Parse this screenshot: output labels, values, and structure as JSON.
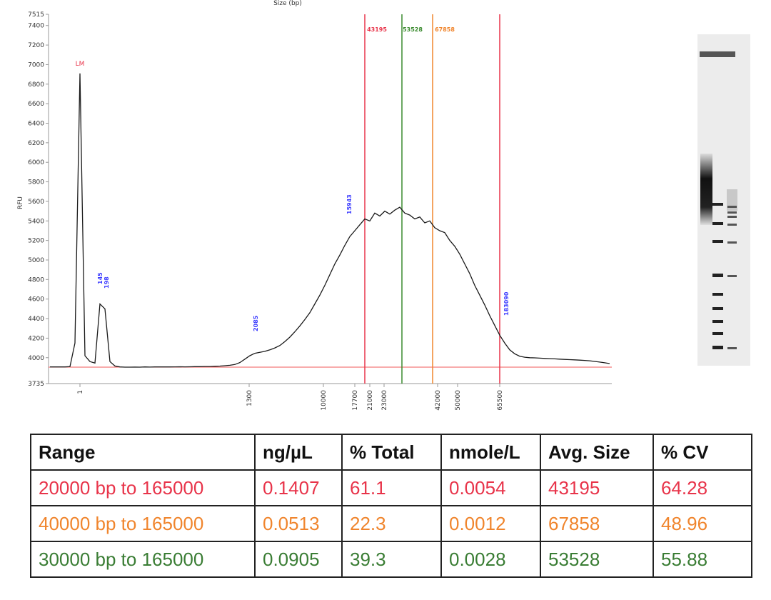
{
  "chart_data": {
    "type": "line",
    "x_label": "Size (bp)",
    "y_label": "RFU",
    "ylim": [
      3735,
      7515
    ],
    "yticks": [
      3735,
      4000,
      4200,
      4400,
      4600,
      4800,
      5000,
      5200,
      5400,
      5600,
      5800,
      6000,
      6200,
      6400,
      6600,
      6800,
      7000,
      7200,
      7400,
      7515
    ],
    "xticks": [
      1,
      1300,
      10000,
      17700,
      21000,
      23000,
      42000,
      50000,
      65500
    ],
    "series": [
      {
        "color": "#1a1a1a",
        "values": [
          3905,
          3905,
          3905,
          3905,
          3908,
          4150,
          6910,
          4020,
          3960,
          3945,
          4550,
          4500,
          3960,
          3915,
          3905,
          3903,
          3903,
          3904,
          3903,
          3905,
          3904,
          3905,
          3905,
          3906,
          3905,
          3906,
          3907,
          3906,
          3907,
          3908,
          3908,
          3910,
          3910,
          3912,
          3914,
          3918,
          3922,
          3930,
          3950,
          3985,
          4020,
          4045,
          4055,
          4065,
          4080,
          4100,
          4125,
          4165,
          4210,
          4265,
          4325,
          4390,
          4460,
          4550,
          4640,
          4740,
          4850,
          4960,
          5050,
          5150,
          5240,
          5300,
          5360,
          5420,
          5400,
          5480,
          5450,
          5500,
          5470,
          5510,
          5540,
          5480,
          5460,
          5420,
          5440,
          5380,
          5400,
          5330,
          5300,
          5280,
          5200,
          5140,
          5060,
          4960,
          4860,
          4740,
          4640,
          4540,
          4430,
          4330,
          4230,
          4150,
          4080,
          4040,
          4015,
          4005,
          4000,
          3998,
          3995,
          3992,
          3990,
          3988,
          3985,
          3982,
          3980,
          3978,
          3975,
          3972,
          3968,
          3962,
          3955,
          3948,
          3940
        ]
      }
    ],
    "annotations": [
      {
        "text": "LM",
        "color": "#e8344a"
      },
      {
        "text": "145",
        "color": "#3b3bff"
      },
      {
        "text": "198",
        "color": "#3b3bff"
      },
      {
        "text": "2085",
        "color": "#3b3bff"
      },
      {
        "text": "15943",
        "color": "#3b3bff"
      },
      {
        "text": "183090",
        "color": "#3b3bff"
      }
    ],
    "markers": [
      {
        "label": "43195",
        "color": "#e8344a"
      },
      {
        "label": "53528",
        "color": "#3a8a2e"
      },
      {
        "label": "67858",
        "color": "#f0852d"
      }
    ]
  },
  "table": {
    "header": [
      "Range",
      "ng/µL",
      "% Total",
      "nmole/L",
      "Avg. Size",
      "% CV"
    ],
    "row_colors": [
      "#e8344a",
      "#f0852d",
      "#3a7d34"
    ],
    "rows": [
      [
        "20000 bp to 165000",
        0.1407,
        61.1,
        0.0054,
        43195,
        64.28
      ],
      [
        "40000 bp to 165000",
        0.0513,
        22.3,
        0.0012,
        67858,
        48.96
      ],
      [
        "30000 bp to 165000",
        0.0905,
        39.3,
        0.0028,
        53528,
        55.88
      ]
    ]
  }
}
